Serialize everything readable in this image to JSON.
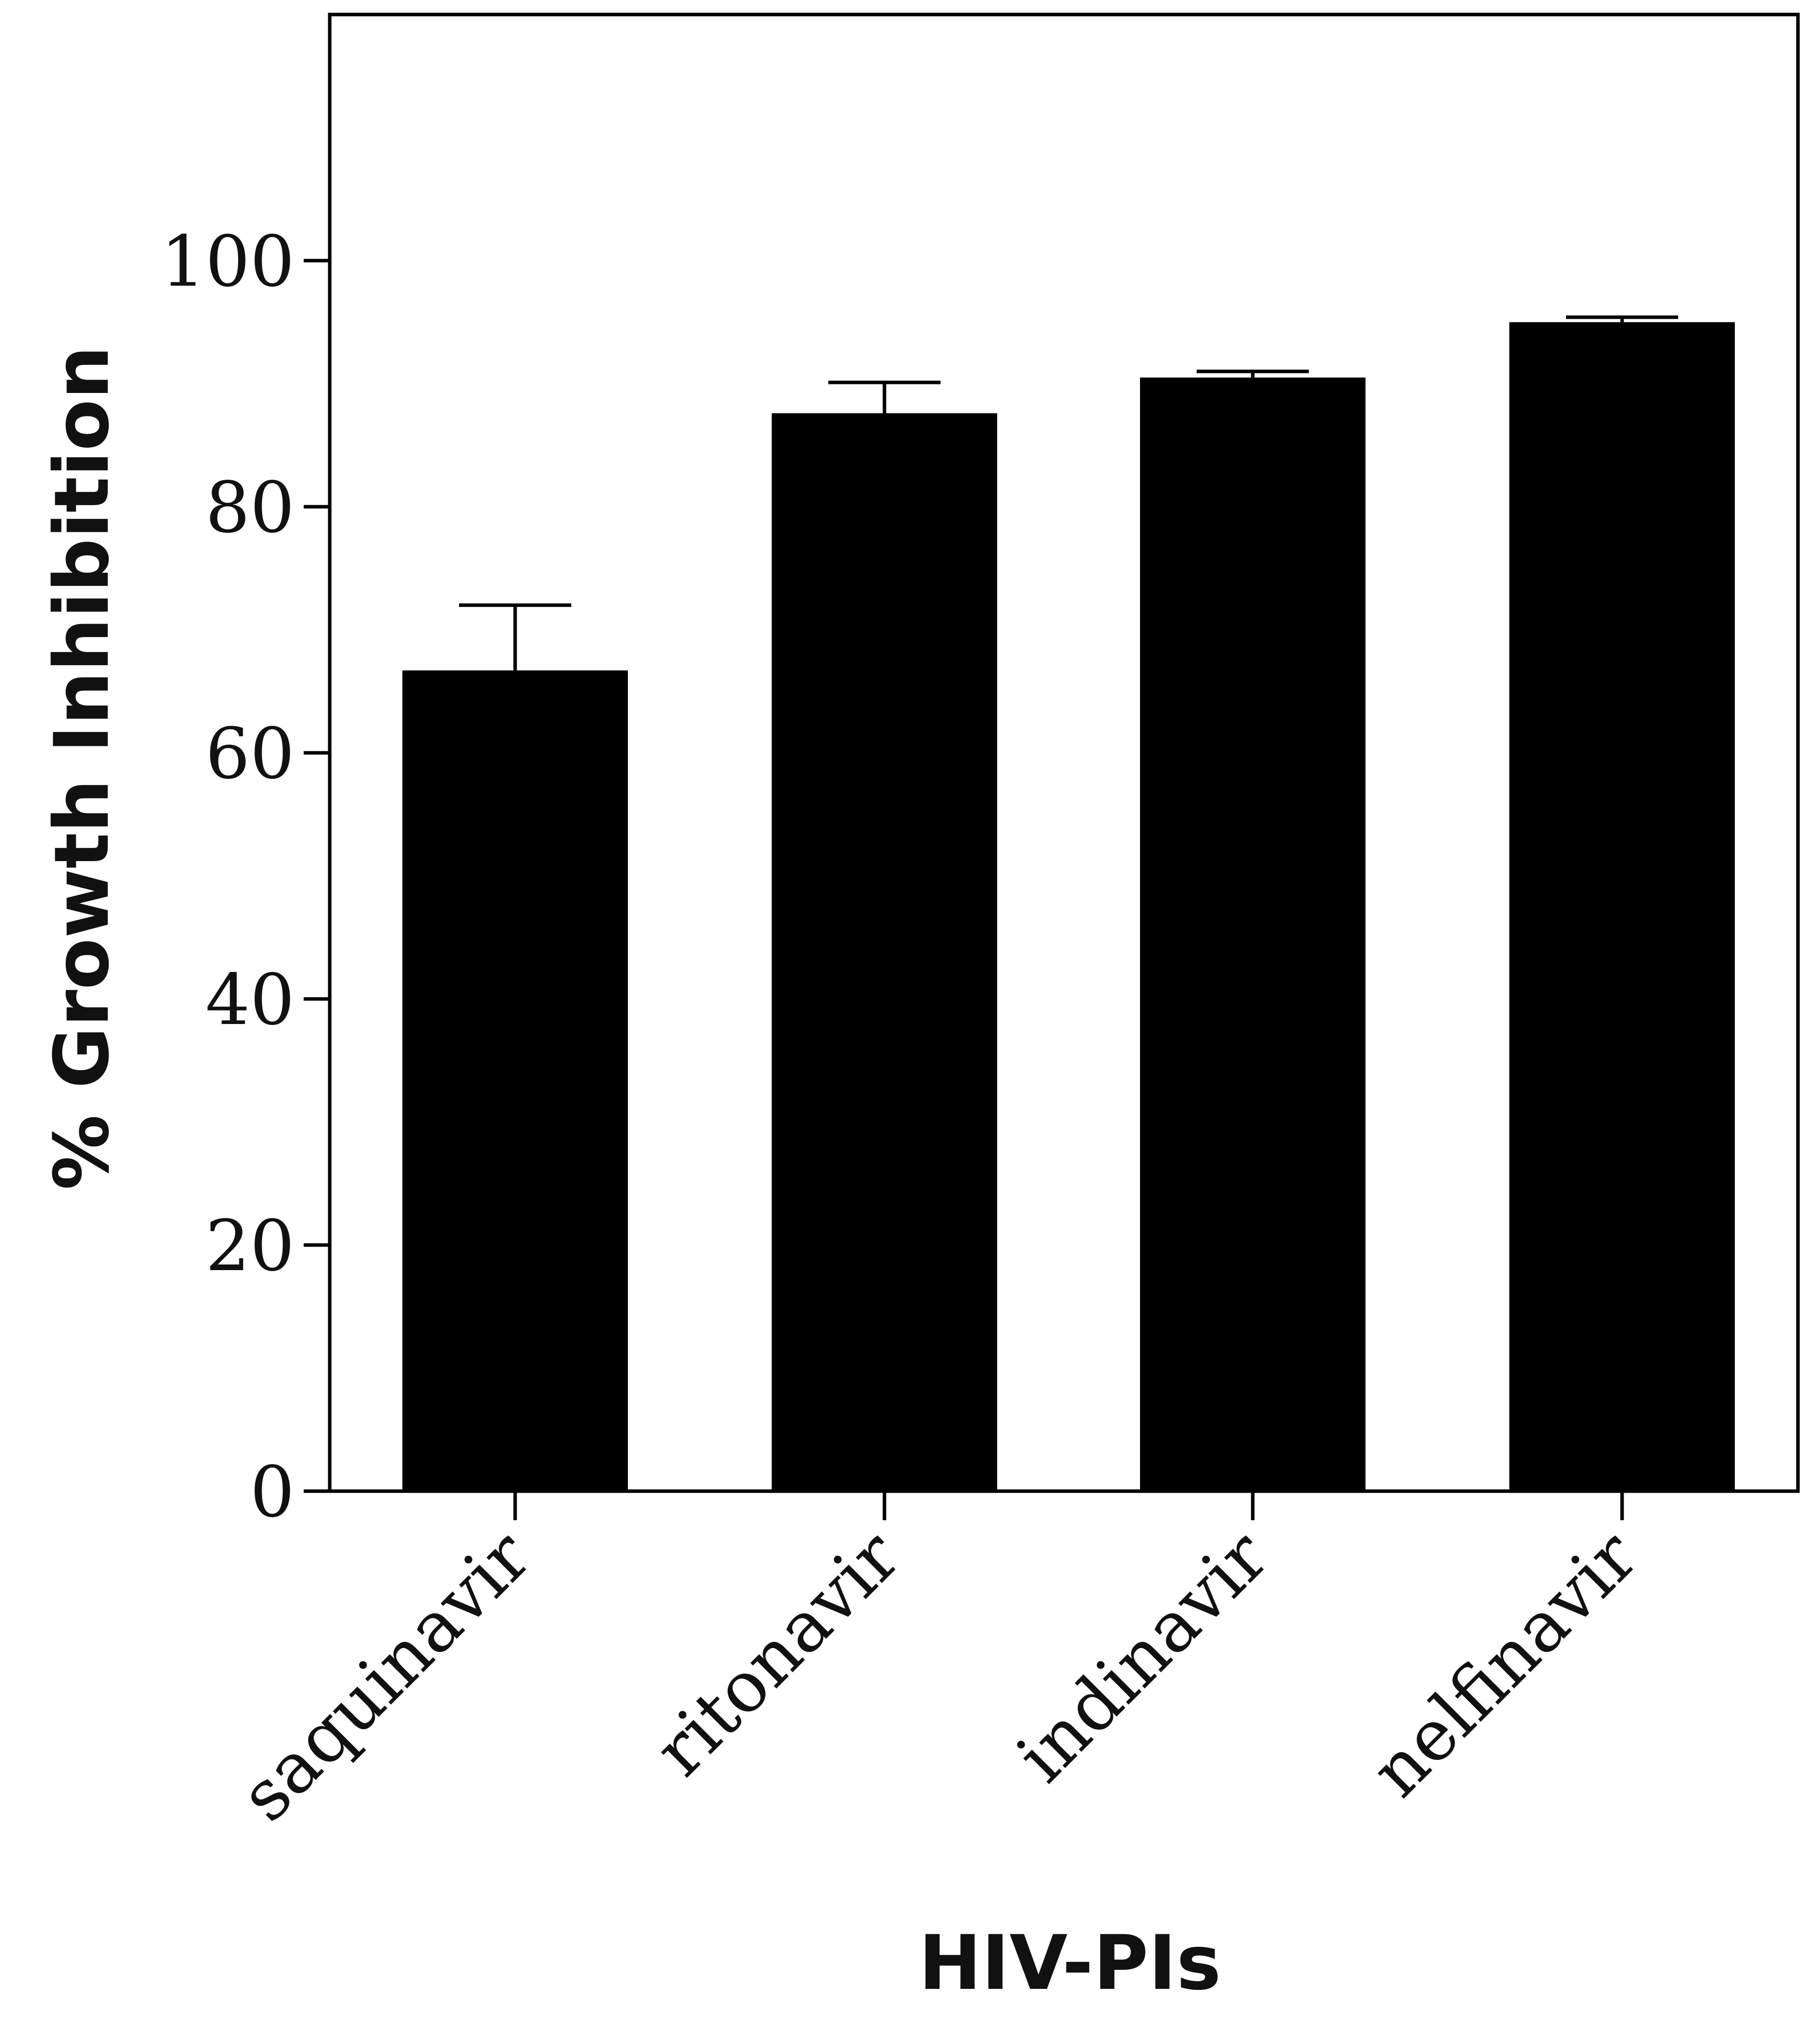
{
  "chart_data": {
    "type": "bar",
    "title": "",
    "xlabel": "HIV-PIs",
    "ylabel": "% Growth Inhibition",
    "categories": [
      "saquinavir",
      "ritonavir",
      "indinavir",
      "nelfinavir"
    ],
    "series": [
      {
        "values": [
          66.7,
          87.6,
          90.5,
          95.0
        ],
        "error_upper": [
          5.3,
          2.5,
          0.5,
          0.4
        ]
      }
    ],
    "ylim": [
      0,
      100
    ],
    "y_axis_top": 120,
    "yticks": [
      "0",
      "20",
      "40",
      "60",
      "80",
      "100"
    ],
    "grid": false,
    "legend": "none",
    "bar_color": "#000000",
    "frame": "box"
  }
}
